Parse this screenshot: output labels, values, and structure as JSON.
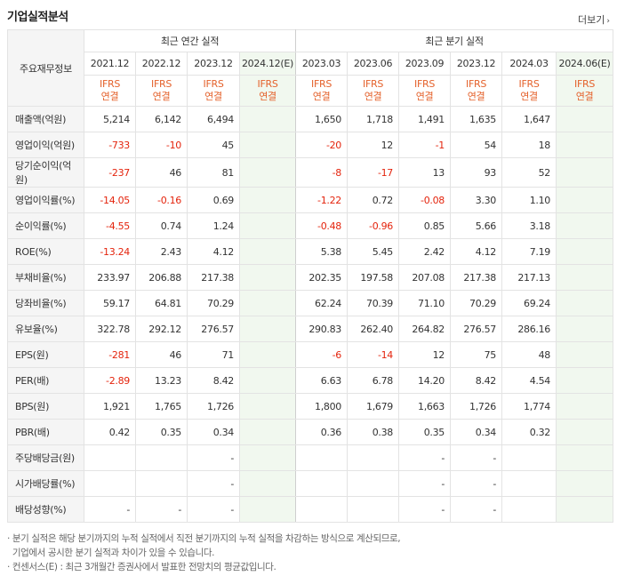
{
  "title": "기업실적분석",
  "more_label": "더보기",
  "row_header": "주요재무정보",
  "annual_group": "최근 연간 실적",
  "quarter_group": "최근 분기 실적",
  "annual_periods": [
    "2021.12",
    "2022.12",
    "2023.12",
    "2024.12(E)"
  ],
  "quarter_periods": [
    "2023.03",
    "2023.06",
    "2023.09",
    "2023.12",
    "2024.03",
    "2024.06(E)"
  ],
  "ifrs_line1": "IFRS",
  "ifrs_line2": "연결",
  "rows": [
    {
      "label": "매출액(억원)",
      "a": [
        "5,214",
        "6,142",
        "6,494",
        ""
      ],
      "q": [
        "1,650",
        "1,718",
        "1,491",
        "1,635",
        "1,647",
        ""
      ]
    },
    {
      "label": "영업이익(억원)",
      "a": [
        "-733",
        "-10",
        "45",
        ""
      ],
      "q": [
        "-20",
        "12",
        "-1",
        "54",
        "18",
        ""
      ]
    },
    {
      "label": "당기순이익(억원)",
      "a": [
        "-237",
        "46",
        "81",
        ""
      ],
      "q": [
        "-8",
        "-17",
        "13",
        "93",
        "52",
        ""
      ]
    },
    {
      "label": "영업이익률(%)",
      "a": [
        "-14.05",
        "-0.16",
        "0.69",
        ""
      ],
      "q": [
        "-1.22",
        "0.72",
        "-0.08",
        "3.30",
        "1.10",
        ""
      ]
    },
    {
      "label": "순이익률(%)",
      "a": [
        "-4.55",
        "0.74",
        "1.24",
        ""
      ],
      "q": [
        "-0.48",
        "-0.96",
        "0.85",
        "5.66",
        "3.18",
        ""
      ]
    },
    {
      "label": "ROE(%)",
      "a": [
        "-13.24",
        "2.43",
        "4.12",
        ""
      ],
      "q": [
        "5.38",
        "5.45",
        "2.42",
        "4.12",
        "7.19",
        ""
      ]
    },
    {
      "label": "부채비율(%)",
      "a": [
        "233.97",
        "206.88",
        "217.38",
        ""
      ],
      "q": [
        "202.35",
        "197.58",
        "207.08",
        "217.38",
        "217.13",
        ""
      ]
    },
    {
      "label": "당좌비율(%)",
      "a": [
        "59.17",
        "64.81",
        "70.29",
        ""
      ],
      "q": [
        "62.24",
        "70.39",
        "71.10",
        "70.29",
        "69.24",
        ""
      ]
    },
    {
      "label": "유보율(%)",
      "a": [
        "322.78",
        "292.12",
        "276.57",
        ""
      ],
      "q": [
        "290.83",
        "262.40",
        "264.82",
        "276.57",
        "286.16",
        ""
      ]
    },
    {
      "label": "EPS(원)",
      "a": [
        "-281",
        "46",
        "71",
        ""
      ],
      "q": [
        "-6",
        "-14",
        "12",
        "75",
        "48",
        ""
      ]
    },
    {
      "label": "PER(배)",
      "a": [
        "-2.89",
        "13.23",
        "8.42",
        ""
      ],
      "q": [
        "6.63",
        "6.78",
        "14.20",
        "8.42",
        "4.54",
        ""
      ]
    },
    {
      "label": "BPS(원)",
      "a": [
        "1,921",
        "1,765",
        "1,726",
        ""
      ],
      "q": [
        "1,800",
        "1,679",
        "1,663",
        "1,726",
        "1,774",
        ""
      ]
    },
    {
      "label": "PBR(배)",
      "a": [
        "0.42",
        "0.35",
        "0.34",
        ""
      ],
      "q": [
        "0.36",
        "0.38",
        "0.35",
        "0.34",
        "0.32",
        ""
      ]
    },
    {
      "label": "주당배당금(원)",
      "a": [
        "",
        "",
        "-",
        ""
      ],
      "q": [
        "",
        "",
        "-",
        "-",
        "",
        ""
      ]
    },
    {
      "label": "시가배당률(%)",
      "a": [
        "",
        "",
        "-",
        ""
      ],
      "q": [
        "",
        "",
        "-",
        "-",
        "",
        ""
      ]
    },
    {
      "label": "배당성향(%)",
      "a": [
        "-",
        "-",
        "-",
        ""
      ],
      "q": [
        "",
        "",
        "-",
        "-",
        "",
        ""
      ]
    }
  ],
  "notes": [
    "· 분기 실적은 해당 분기까지의 누적 실적에서 직전 분기까지의 누적 실적을 차감하는 방식으로 계산되므로,",
    "  기업에서 공시한 분기 실적과 차이가 있을 수 있습니다.",
    "· 컨센서스(E) : 최근 3개월간 증권사에서 발표한 전망치의 평균값입니다."
  ]
}
